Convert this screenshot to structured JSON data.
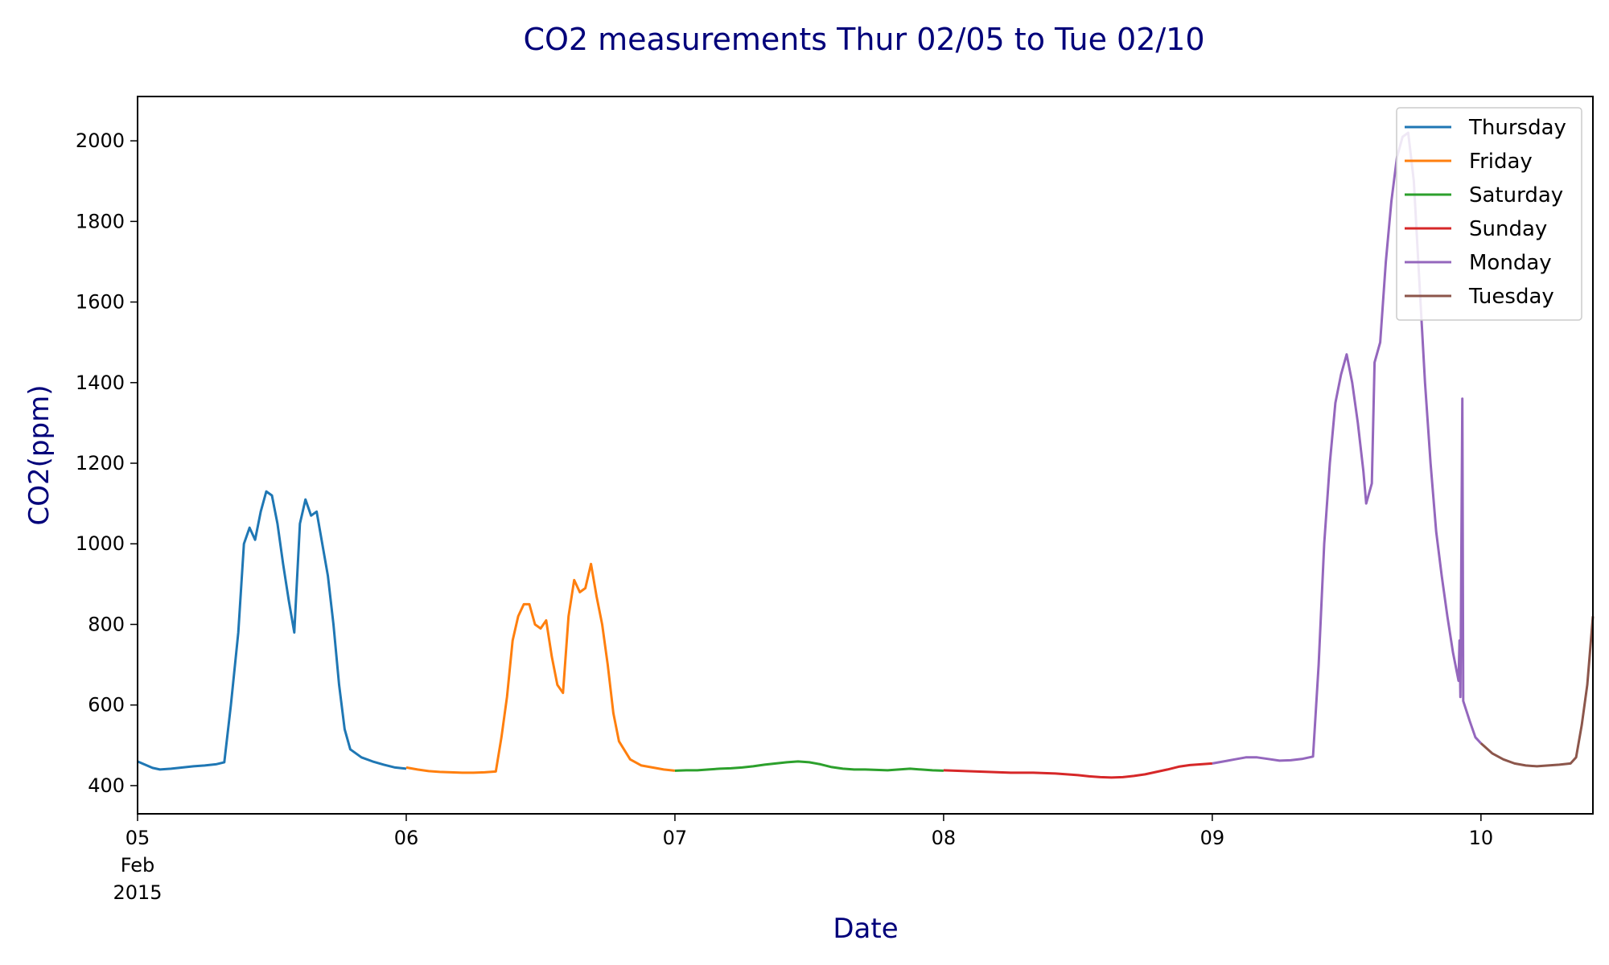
{
  "chart_data": {
    "type": "line",
    "title": "CO2 measurements Thur 02/05 to Tue 02/10",
    "xlabel": "Date",
    "ylabel": "CO2(ppm)",
    "xlim": [
      "2015-02-05 00:00",
      "2015-02-10 10:00"
    ],
    "ylim": [
      330,
      2110
    ],
    "x_ticks": [
      {
        "x": "2015-02-05",
        "label": "05",
        "sub": [
          "Feb",
          "2015"
        ]
      },
      {
        "x": "2015-02-06",
        "label": "06"
      },
      {
        "x": "2015-02-07",
        "label": "07"
      },
      {
        "x": "2015-02-08",
        "label": "08"
      },
      {
        "x": "2015-02-09",
        "label": "09"
      },
      {
        "x": "2015-02-10",
        "label": "10"
      }
    ],
    "y_ticks": [
      400,
      600,
      800,
      1000,
      1200,
      1400,
      1600,
      1800,
      2000
    ],
    "grid": false,
    "legend_position": "top-right",
    "series": [
      {
        "name": "Thursday",
        "color": "#1f77b4",
        "points": [
          [
            "2015-02-05 00:00",
            460
          ],
          [
            "2015-02-05 00:40",
            452
          ],
          [
            "2015-02-05 01:20",
            444
          ],
          [
            "2015-02-05 02:00",
            440
          ],
          [
            "2015-02-05 03:00",
            442
          ],
          [
            "2015-02-05 04:00",
            445
          ],
          [
            "2015-02-05 05:00",
            448
          ],
          [
            "2015-02-05 06:00",
            450
          ],
          [
            "2015-02-05 07:00",
            453
          ],
          [
            "2015-02-05 07:45",
            458
          ],
          [
            "2015-02-05 08:20",
            600
          ],
          [
            "2015-02-05 09:00",
            780
          ],
          [
            "2015-02-05 09:30",
            1000
          ],
          [
            "2015-02-05 10:00",
            1040
          ],
          [
            "2015-02-05 10:30",
            1010
          ],
          [
            "2015-02-05 11:00",
            1080
          ],
          [
            "2015-02-05 11:30",
            1130
          ],
          [
            "2015-02-05 12:00",
            1120
          ],
          [
            "2015-02-05 12:30",
            1050
          ],
          [
            "2015-02-05 13:00",
            950
          ],
          [
            "2015-02-05 13:30",
            860
          ],
          [
            "2015-02-05 14:00",
            780
          ],
          [
            "2015-02-05 14:30",
            1050
          ],
          [
            "2015-02-05 15:00",
            1110
          ],
          [
            "2015-02-05 15:30",
            1070
          ],
          [
            "2015-02-05 16:00",
            1080
          ],
          [
            "2015-02-05 16:30",
            1000
          ],
          [
            "2015-02-05 17:00",
            920
          ],
          [
            "2015-02-05 17:30",
            800
          ],
          [
            "2015-02-05 18:00",
            650
          ],
          [
            "2015-02-05 18:30",
            540
          ],
          [
            "2015-02-05 19:00",
            490
          ],
          [
            "2015-02-05 20:00",
            470
          ],
          [
            "2015-02-05 21:00",
            460
          ],
          [
            "2015-02-05 22:00",
            452
          ],
          [
            "2015-02-05 23:00",
            445
          ],
          [
            "2015-02-06 00:00",
            442
          ]
        ]
      },
      {
        "name": "Friday",
        "color": "#ff7f0e",
        "points": [
          [
            "2015-02-06 00:00",
            445
          ],
          [
            "2015-02-06 01:00",
            440
          ],
          [
            "2015-02-06 02:00",
            436
          ],
          [
            "2015-02-06 03:00",
            434
          ],
          [
            "2015-02-06 04:00",
            433
          ],
          [
            "2015-02-06 05:00",
            432
          ],
          [
            "2015-02-06 06:00",
            432
          ],
          [
            "2015-02-06 07:00",
            433
          ],
          [
            "2015-02-06 08:00",
            435
          ],
          [
            "2015-02-06 08:30",
            520
          ],
          [
            "2015-02-06 09:00",
            620
          ],
          [
            "2015-02-06 09:30",
            760
          ],
          [
            "2015-02-06 10:00",
            820
          ],
          [
            "2015-02-06 10:30",
            850
          ],
          [
            "2015-02-06 11:00",
            850
          ],
          [
            "2015-02-06 11:30",
            800
          ],
          [
            "2015-02-06 12:00",
            790
          ],
          [
            "2015-02-06 12:30",
            810
          ],
          [
            "2015-02-06 13:00",
            720
          ],
          [
            "2015-02-06 13:30",
            650
          ],
          [
            "2015-02-06 14:00",
            630
          ],
          [
            "2015-02-06 14:30",
            820
          ],
          [
            "2015-02-06 15:00",
            910
          ],
          [
            "2015-02-06 15:30",
            880
          ],
          [
            "2015-02-06 16:00",
            890
          ],
          [
            "2015-02-06 16:30",
            950
          ],
          [
            "2015-02-06 17:00",
            870
          ],
          [
            "2015-02-06 17:30",
            800
          ],
          [
            "2015-02-06 18:00",
            700
          ],
          [
            "2015-02-06 18:30",
            580
          ],
          [
            "2015-02-06 19:00",
            510
          ],
          [
            "2015-02-06 20:00",
            465
          ],
          [
            "2015-02-06 21:00",
            450
          ],
          [
            "2015-02-06 22:00",
            445
          ],
          [
            "2015-02-06 23:00",
            440
          ],
          [
            "2015-02-07 00:00",
            437
          ]
        ]
      },
      {
        "name": "Saturday",
        "color": "#2ca02c",
        "points": [
          [
            "2015-02-07 00:00",
            437
          ],
          [
            "2015-02-07 01:00",
            438
          ],
          [
            "2015-02-07 02:00",
            438
          ],
          [
            "2015-02-07 03:00",
            440
          ],
          [
            "2015-02-07 04:00",
            442
          ],
          [
            "2015-02-07 05:00",
            443
          ],
          [
            "2015-02-07 06:00",
            445
          ],
          [
            "2015-02-07 07:00",
            448
          ],
          [
            "2015-02-07 08:00",
            452
          ],
          [
            "2015-02-07 09:00",
            455
          ],
          [
            "2015-02-07 10:00",
            458
          ],
          [
            "2015-02-07 11:00",
            460
          ],
          [
            "2015-02-07 12:00",
            458
          ],
          [
            "2015-02-07 13:00",
            453
          ],
          [
            "2015-02-07 14:00",
            446
          ],
          [
            "2015-02-07 15:00",
            442
          ],
          [
            "2015-02-07 16:00",
            440
          ],
          [
            "2015-02-07 17:00",
            440
          ],
          [
            "2015-02-07 18:00",
            439
          ],
          [
            "2015-02-07 19:00",
            438
          ],
          [
            "2015-02-07 20:00",
            440
          ],
          [
            "2015-02-07 21:00",
            442
          ],
          [
            "2015-02-07 22:00",
            440
          ],
          [
            "2015-02-07 23:00",
            438
          ],
          [
            "2015-02-08 00:00",
            437
          ]
        ]
      },
      {
        "name": "Sunday",
        "color": "#d62728",
        "points": [
          [
            "2015-02-08 00:00",
            438
          ],
          [
            "2015-02-08 02:00",
            436
          ],
          [
            "2015-02-08 04:00",
            434
          ],
          [
            "2015-02-08 06:00",
            432
          ],
          [
            "2015-02-08 08:00",
            432
          ],
          [
            "2015-02-08 10:00",
            430
          ],
          [
            "2015-02-08 12:00",
            426
          ],
          [
            "2015-02-08 13:00",
            423
          ],
          [
            "2015-02-08 14:00",
            421
          ],
          [
            "2015-02-08 15:00",
            420
          ],
          [
            "2015-02-08 16:00",
            421
          ],
          [
            "2015-02-08 17:00",
            424
          ],
          [
            "2015-02-08 18:00",
            428
          ],
          [
            "2015-02-08 19:00",
            434
          ],
          [
            "2015-02-08 20:00",
            440
          ],
          [
            "2015-02-08 21:00",
            447
          ],
          [
            "2015-02-08 22:00",
            451
          ],
          [
            "2015-02-08 23:00",
            453
          ],
          [
            "2015-02-09 00:00",
            455
          ]
        ]
      },
      {
        "name": "Monday",
        "color": "#9467bd",
        "points": [
          [
            "2015-02-09 00:00",
            455
          ],
          [
            "2015-02-09 01:00",
            460
          ],
          [
            "2015-02-09 02:00",
            465
          ],
          [
            "2015-02-09 03:00",
            470
          ],
          [
            "2015-02-09 04:00",
            470
          ],
          [
            "2015-02-09 05:00",
            466
          ],
          [
            "2015-02-09 06:00",
            462
          ],
          [
            "2015-02-09 07:00",
            463
          ],
          [
            "2015-02-09 08:00",
            466
          ],
          [
            "2015-02-09 09:00",
            472
          ],
          [
            "2015-02-09 09:30",
            700
          ],
          [
            "2015-02-09 10:00",
            1000
          ],
          [
            "2015-02-09 10:30",
            1200
          ],
          [
            "2015-02-09 11:00",
            1350
          ],
          [
            "2015-02-09 11:30",
            1420
          ],
          [
            "2015-02-09 12:00",
            1470
          ],
          [
            "2015-02-09 12:30",
            1400
          ],
          [
            "2015-02-09 13:00",
            1300
          ],
          [
            "2015-02-09 13:30",
            1180
          ],
          [
            "2015-02-09 13:45",
            1100
          ],
          [
            "2015-02-09 14:15",
            1150
          ],
          [
            "2015-02-09 14:30",
            1450
          ],
          [
            "2015-02-09 15:00",
            1500
          ],
          [
            "2015-02-09 15:30",
            1700
          ],
          [
            "2015-02-09 16:00",
            1850
          ],
          [
            "2015-02-09 16:30",
            1960
          ],
          [
            "2015-02-09 17:00",
            2010
          ],
          [
            "2015-02-09 17:30",
            2020
          ],
          [
            "2015-02-09 18:00",
            1900
          ],
          [
            "2015-02-09 18:30",
            1650
          ],
          [
            "2015-02-09 19:00",
            1400
          ],
          [
            "2015-02-09 19:30",
            1200
          ],
          [
            "2015-02-09 20:00",
            1030
          ],
          [
            "2015-02-09 20:30",
            920
          ],
          [
            "2015-02-09 21:00",
            820
          ],
          [
            "2015-02-09 21:30",
            730
          ],
          [
            "2015-02-09 22:00",
            660
          ],
          [
            "2015-02-09 22:05",
            760
          ],
          [
            "2015-02-09 22:10",
            620
          ],
          [
            "2015-02-09 22:20",
            1360
          ],
          [
            "2015-02-09 22:25",
            610
          ],
          [
            "2015-02-09 23:00",
            560
          ],
          [
            "2015-02-09 23:30",
            520
          ],
          [
            "2015-02-10 00:00",
            505
          ]
        ]
      },
      {
        "name": "Tuesday",
        "color": "#8c564b",
        "points": [
          [
            "2015-02-10 00:00",
            505
          ],
          [
            "2015-02-10 01:00",
            480
          ],
          [
            "2015-02-10 02:00",
            465
          ],
          [
            "2015-02-10 03:00",
            455
          ],
          [
            "2015-02-10 04:00",
            450
          ],
          [
            "2015-02-10 05:00",
            448
          ],
          [
            "2015-02-10 06:00",
            450
          ],
          [
            "2015-02-10 07:00",
            452
          ],
          [
            "2015-02-10 08:00",
            455
          ],
          [
            "2015-02-10 08:30",
            470
          ],
          [
            "2015-02-10 09:00",
            550
          ],
          [
            "2015-02-10 09:30",
            650
          ],
          [
            "2015-02-10 10:00",
            820
          ]
        ]
      }
    ]
  }
}
